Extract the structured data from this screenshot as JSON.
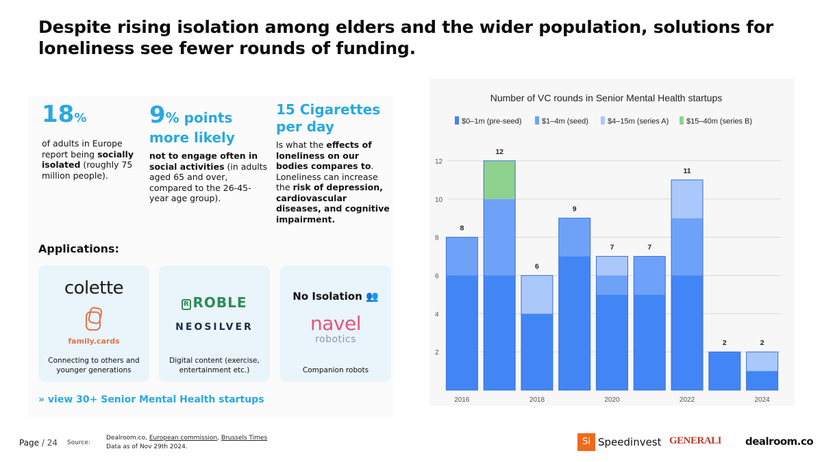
{
  "title": "Despite rising isolation among elders and the wider population, solutions for loneliness see fewer rounds of funding.",
  "stats": [
    {
      "big": "18",
      "unit": "%",
      "text_pre": "of adults in Europe report being ",
      "text_bold": "socially isolated",
      "text_post": " (roughly 75 million people)."
    },
    {
      "big": "9",
      "unit": "% points",
      "line2": "more likely",
      "text_bold": "not to engage often in social activities",
      "text_post": " (in adults aged 65 and over, compared to the 26-45-year age group)."
    },
    {
      "big": "15 Cigarettes per day",
      "text_pre": "Is what the ",
      "text_bold1": "effects of loneliness on our bodies compares to",
      "text_mid": ". Loneliness can increase the ",
      "text_bold2": "risk of depression, cardiovascular diseases, and cognitive impairment."
    }
  ],
  "applications": {
    "heading": "Applications:",
    "cards": [
      {
        "logos": [
          "colette",
          "family.cards"
        ],
        "caption": "Connecting to others and younger generations"
      },
      {
        "logos": [
          "ROBLE",
          "NEOSILVER"
        ],
        "caption": "Digital content (exercise, entertainment etc.)"
      },
      {
        "logos": [
          "No Isolation",
          "navel",
          "robotics"
        ],
        "caption": "Companion robots"
      }
    ],
    "view_link": "» view 30+ Senior Mental Health startups"
  },
  "chart_data": {
    "type": "bar",
    "stacked": true,
    "title": "Number of VC rounds in Senior Mental Health startups",
    "categories": [
      "2016",
      "2017",
      "2018",
      "2019",
      "2020",
      "2021",
      "2022",
      "2023",
      "2024"
    ],
    "x_tick_labels": [
      "2016",
      "",
      "2018",
      "",
      "2020",
      "",
      "2022",
      "",
      "2024"
    ],
    "series": [
      {
        "name": "$0–1m (pre-seed)",
        "color": "#4285f4",
        "values": [
          6,
          6,
          4,
          7,
          5,
          5,
          6,
          2,
          1
        ]
      },
      {
        "name": "$1–4m (seed)",
        "color": "#6ea2f8",
        "values": [
          2,
          4,
          0,
          2,
          1,
          2,
          3,
          0,
          0
        ]
      },
      {
        "name": "$4–15m (series A)",
        "color": "#aac8fa",
        "values": [
          0,
          0,
          2,
          0,
          1,
          0,
          2,
          0,
          1
        ]
      },
      {
        "name": "$15–40m (series B)",
        "color": "#8fd18f",
        "values": [
          0,
          2,
          0,
          0,
          0,
          0,
          0,
          0,
          0
        ]
      }
    ],
    "totals": [
      8,
      12,
      6,
      9,
      7,
      7,
      11,
      2,
      2
    ],
    "y_ticks": [
      2,
      4,
      6,
      8,
      10,
      12
    ],
    "ylim": [
      0,
      13
    ],
    "xlabel": "",
    "ylabel": "",
    "legend_position": "top",
    "grid": true
  },
  "footer": {
    "page_label": "Page",
    "page_total": "/ 24",
    "source_label": "Source:",
    "sources": [
      "Dealroom.co",
      "European commission",
      "Brussels Times"
    ],
    "source_sep1": ", ",
    "source_sep2": ", ",
    "data_as_of": "Data as of Nov 29th 2024."
  },
  "brands": {
    "si": "Si",
    "speedinvest": "Speedinvest",
    "generali": "GENERALI",
    "dealroom": "dealroom.co"
  }
}
